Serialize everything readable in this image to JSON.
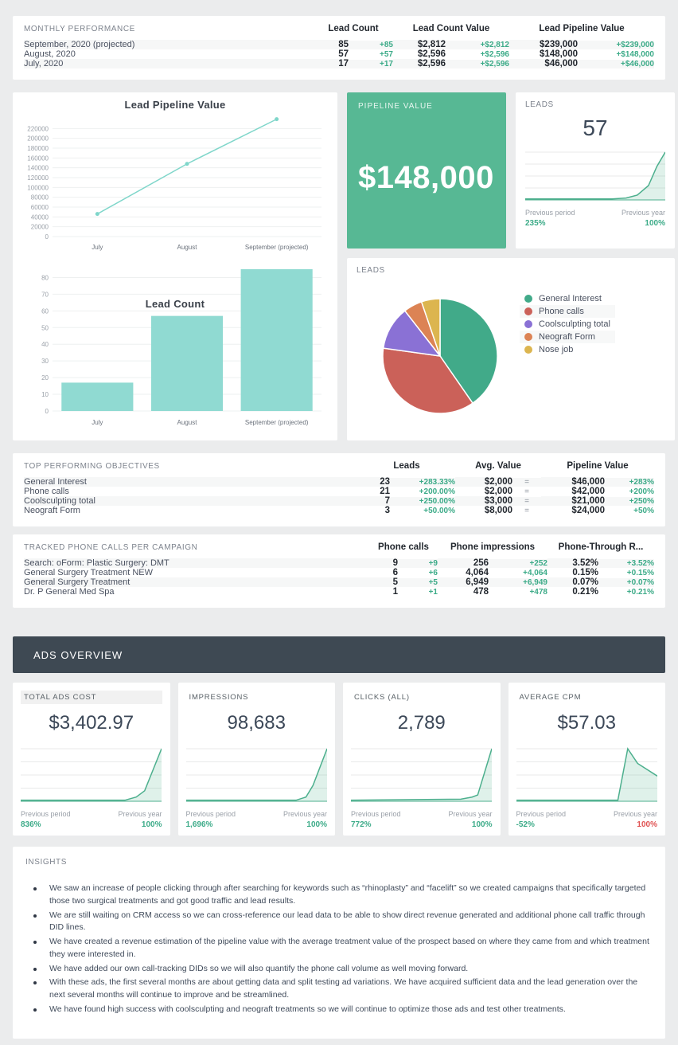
{
  "colors": {
    "accent_green": "#3cab88",
    "negative_red": "#e05252",
    "pipeline_card_green": "#57b894",
    "bar_teal": "#90dad2",
    "line_teal": "#7fd6ca",
    "spark_green": "#4caf8d",
    "spark_fill": "rgba(76,175,141,0.18)",
    "dark_header_bg": "#3e4953",
    "pie_colors": [
      "#41aa89",
      "#cb6159",
      "#8a71d5",
      "#dc8354",
      "#dcb54f"
    ]
  },
  "monthly_performance": {
    "title": "MONTHLY PERFORMANCE",
    "col_groups": [
      "Lead Count",
      "Lead Count Value",
      "Lead Pipeline Value"
    ],
    "rows": [
      {
        "cells": [
          "September, 2020 (projected)",
          "85",
          "+85",
          "$2,812",
          "+$2,812",
          "$239,000",
          "+$239,000"
        ]
      },
      {
        "cells": [
          "August, 2020",
          "57",
          "+57",
          "$2,596",
          "+$2,596",
          "$148,000",
          "+$148,000"
        ]
      },
      {
        "cells": [
          "July, 2020",
          "17",
          "+17",
          "$2,596",
          "+$2,596",
          "$46,000",
          "+$46,000"
        ]
      }
    ]
  },
  "chart_data": [
    {
      "id": "pipeline_line",
      "type": "line",
      "title": "Lead Pipeline Value",
      "categories": [
        "July",
        "August",
        "September (projected)"
      ],
      "values": [
        46000,
        148000,
        239000
      ],
      "ylim": [
        0,
        220000
      ],
      "ytick_step": 20000,
      "grid": true,
      "legend_position": "none"
    },
    {
      "id": "lead_count_bar",
      "type": "bar",
      "title": "Lead Count",
      "categories": [
        "July",
        "August",
        "September (projected)"
      ],
      "values": [
        17,
        57,
        85
      ],
      "ylim": [
        0,
        80
      ],
      "ytick_step": 10,
      "grid": true,
      "legend_position": "none"
    },
    {
      "id": "leads_pie",
      "type": "pie",
      "title": "LEADS",
      "labels": [
        "General Interest",
        "Phone calls",
        "Coolsculpting total",
        "Neograft Form",
        "Nose job"
      ],
      "values": [
        23,
        21,
        7,
        3,
        3
      ],
      "legend_position": "right"
    },
    {
      "id": "leads_spark",
      "type": "area",
      "points": [
        [
          0,
          0.02
        ],
        [
          0.62,
          0.02
        ],
        [
          0.72,
          0.04
        ],
        [
          0.8,
          0.1
        ],
        [
          0.88,
          0.3
        ],
        [
          0.94,
          0.7
        ],
        [
          1,
          1
        ]
      ]
    },
    {
      "id": "ads_cost_spark",
      "type": "area",
      "points": [
        [
          0,
          0.02
        ],
        [
          0.74,
          0.02
        ],
        [
          0.82,
          0.08
        ],
        [
          0.88,
          0.2
        ],
        [
          1,
          1
        ]
      ]
    },
    {
      "id": "impressions_spark",
      "type": "area",
      "points": [
        [
          0,
          0.02
        ],
        [
          0.78,
          0.02
        ],
        [
          0.85,
          0.08
        ],
        [
          0.9,
          0.3
        ],
        [
          1,
          1
        ]
      ]
    },
    {
      "id": "clicks_spark",
      "type": "area",
      "points": [
        [
          0,
          0.02
        ],
        [
          0.78,
          0.04
        ],
        [
          0.86,
          0.08
        ],
        [
          0.9,
          0.12
        ],
        [
          1,
          1
        ]
      ]
    },
    {
      "id": "cpm_spark",
      "type": "area",
      "points": [
        [
          0,
          0.02
        ],
        [
          0.72,
          0.02
        ],
        [
          0.79,
          1
        ],
        [
          0.86,
          0.72
        ],
        [
          1,
          0.48
        ]
      ]
    }
  ],
  "pipeline_value_card": {
    "title": "PIPELINE VALUE",
    "value": "$148,000"
  },
  "leads_card": {
    "title": "LEADS",
    "value": "57",
    "prev_period_label": "Previous period",
    "prev_period_value": "235%",
    "prev_year_label": "Previous year",
    "prev_year_value": "100%"
  },
  "leads_pie_card": {
    "title": "LEADS"
  },
  "top_objectives": {
    "title": "TOP PERFORMING OBJECTIVES",
    "col_groups": [
      "Leads",
      "Avg. Value",
      "Pipeline Value"
    ],
    "rows": [
      {
        "cells": [
          "General Interest",
          "23",
          "+283.33%",
          "$2,000",
          "=",
          "$46,000",
          "+283%"
        ]
      },
      {
        "cells": [
          "Phone calls",
          "21",
          "+200.00%",
          "$2,000",
          "=",
          "$42,000",
          "+200%"
        ]
      },
      {
        "cells": [
          "Coolsculpting total",
          "7",
          "+250.00%",
          "$3,000",
          "=",
          "$21,000",
          "+250%"
        ]
      },
      {
        "cells": [
          "Neograft Form",
          "3",
          "+50.00%",
          "$8,000",
          "=",
          "$24,000",
          "+50%"
        ]
      }
    ]
  },
  "tracked_calls": {
    "title": "TRACKED PHONE CALLS PER CAMPAIGN",
    "col_groups": [
      "Phone calls",
      "Phone impressions",
      "Phone-Through R..."
    ],
    "rows": [
      {
        "cells": [
          "Search: oForm: Plastic Surgery: DMT",
          "9",
          "+9",
          "256",
          "+252",
          "3.52%",
          "+3.52%"
        ]
      },
      {
        "cells": [
          "General Surgery Treatment NEW",
          "6",
          "+6",
          "4,064",
          "+4,064",
          "0.15%",
          "+0.15%"
        ]
      },
      {
        "cells": [
          "General Surgery Treatment",
          "5",
          "+5",
          "6,949",
          "+6,949",
          "0.07%",
          "+0.07%"
        ]
      },
      {
        "cells": [
          "Dr. P General Med Spa",
          "1",
          "+1",
          "478",
          "+478",
          "0.21%",
          "+0.21%"
        ]
      }
    ]
  },
  "ads_overview": {
    "title": "ADS OVERVIEW",
    "cards": [
      {
        "label": "TOTAL  ADS COST",
        "value": "$3,402.97",
        "spark_id": "ads_cost_spark",
        "prev_period_label": "Previous period",
        "prev_period_value": "836%",
        "prev_period_color": "green",
        "prev_year_label": "Previous year",
        "prev_year_value": "100%",
        "prev_year_color": "green"
      },
      {
        "label": "IMPRESSIONS",
        "value": "98,683",
        "spark_id": "impressions_spark",
        "prev_period_label": "Previous period",
        "prev_period_value": "1,696%",
        "prev_period_color": "green",
        "prev_year_label": "Previous year",
        "prev_year_value": "100%",
        "prev_year_color": "green"
      },
      {
        "label": "CLICKS (ALL)",
        "value": "2,789",
        "spark_id": "clicks_spark",
        "prev_period_label": "Previous period",
        "prev_period_value": "772%",
        "prev_period_color": "green",
        "prev_year_label": "Previous year",
        "prev_year_value": "100%",
        "prev_year_color": "green"
      },
      {
        "label": "AVERAGE CPM",
        "value": "$57.03",
        "spark_id": "cpm_spark",
        "prev_period_label": "Previous period",
        "prev_period_value": "-52%",
        "prev_period_color": "green",
        "prev_year_label": "Previous year",
        "prev_year_value": "100%",
        "prev_year_color": "red"
      }
    ]
  },
  "insights": {
    "title": "INSIGHTS",
    "bullets": [
      "We saw an increase of people clicking through after searching for keywords such as “rhinoplasty” and “facelift” so we created campaigns that specifically targeted those two surgical treatments and got good traffic and lead results.",
      "We are still waiting on CRM access so we can cross-reference our lead data to be able to show direct revenue generated and additional phone call traffic through DID lines.",
      "We have created a revenue estimation of the pipeline value with the average treatment value of the prospect based on where they came from and which treatment they were interested in.",
      "We have added our own call-tracking DIDs so we will also quantify the phone call volume as well moving forward.",
      "With these ads, the first several months are about getting data and split testing ad variations. We have acquired sufficient data and the lead generation over the next several months will continue to improve and be streamlined.",
      "We have found high success with coolsculpting and neograft treatments so we will continue to optimize those ads and test other treatments."
    ]
  }
}
